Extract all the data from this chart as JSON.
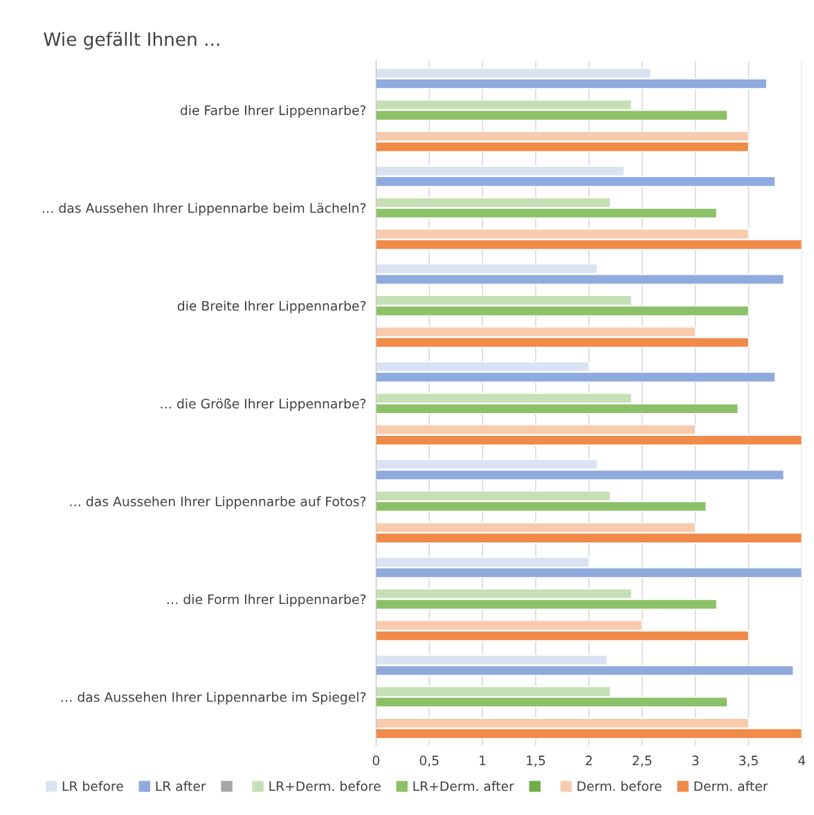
{
  "chart_data": {
    "type": "bar",
    "orientation": "horizontal",
    "title": "Wie gefällt Ihnen ...",
    "categories": [
      "die Farbe Ihrer Lippennarbe?",
      "… das Aussehen Ihrer Lippennarbe beim Lächeln?",
      "die Breite Ihrer Lippennarbe?",
      "… die Größe Ihrer Lippennarbe?",
      "… das Aussehen Ihrer Lippennarbe auf Fotos?",
      "… die Form Ihrer Lippennarbe?",
      "… das Aussehen Ihrer Lippennarbe im Spiegel?"
    ],
    "series": [
      {
        "name": "LR before",
        "color": "#dae3f3",
        "values": [
          2.58,
          2.33,
          2.08,
          2.0,
          2.08,
          2.0,
          2.17
        ]
      },
      {
        "name": "LR after",
        "color": "#8faadc",
        "values": [
          3.67,
          3.75,
          3.83,
          3.75,
          3.83,
          4.0,
          3.92
        ]
      },
      {
        "color": "#a5a5a5",
        "values": [
          null,
          null,
          null,
          null,
          null,
          null,
          null
        ]
      },
      {
        "name": "LR+Derm. before",
        "color": "#c5e0b4",
        "values": [
          2.4,
          2.2,
          2.4,
          2.4,
          2.2,
          2.4,
          2.2
        ]
      },
      {
        "name": "LR+Derm. after",
        "color": "#8cc168",
        "values": [
          3.3,
          3.2,
          3.5,
          3.4,
          3.1,
          3.2,
          3.3
        ]
      },
      {
        "color": "#70ad47",
        "values": [
          null,
          null,
          null,
          null,
          null,
          null,
          null
        ]
      },
      {
        "name": "Derm. before",
        "color": "#f8cbad",
        "values": [
          3.5,
          3.5,
          3.0,
          3.0,
          3.0,
          2.5,
          3.5
        ]
      },
      {
        "name": "Derm. after",
        "color": "#f08a48",
        "values": [
          3.5,
          4.0,
          3.5,
          4.0,
          4.0,
          3.5,
          4.0
        ]
      }
    ],
    "xlim": [
      0,
      4
    ],
    "xticks": [
      0,
      {
        "value": 0.5,
        "label": "0,5"
      },
      1,
      {
        "value": 1.5,
        "label": "1,5"
      },
      2,
      {
        "value": 2.5,
        "label": "2,5"
      },
      3,
      {
        "value": 3.5,
        "label": "3,5"
      },
      4
    ],
    "grid": "x",
    "legend": "bottom"
  }
}
